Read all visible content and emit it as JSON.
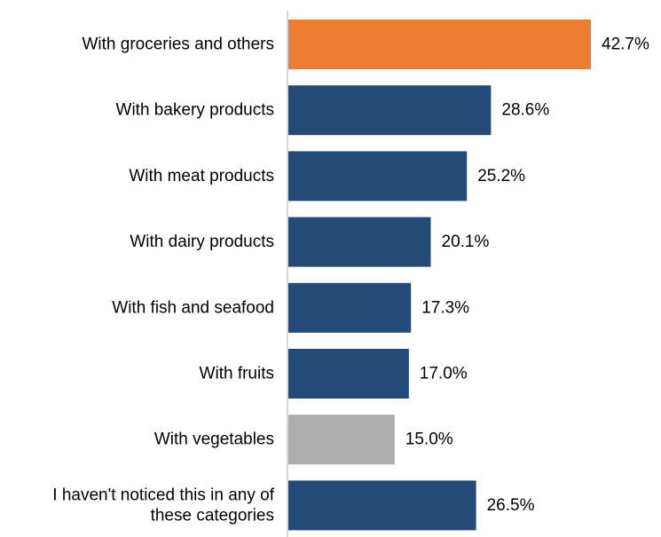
{
  "chart_data": {
    "type": "bar",
    "orientation": "horizontal",
    "title": "",
    "xlabel": "",
    "ylabel": "",
    "value_suffix": "%",
    "xlim": [
      0,
      42.7
    ],
    "grid": false,
    "legend": "none",
    "categories": [
      "With groceries and others",
      "With bakery products",
      "With meat products",
      "With dairy products",
      "With fish and seafood",
      "With fruits",
      "With vegetables",
      "I haven't noticed this in any of these categories"
    ],
    "category_lines": [
      [
        "With groceries and others"
      ],
      [
        "With bakery products"
      ],
      [
        "With meat products"
      ],
      [
        "With dairy products"
      ],
      [
        "With fish and seafood"
      ],
      [
        "With fruits"
      ],
      [
        "With vegetables"
      ],
      [
        "I haven't noticed this in any of",
        "these categories"
      ]
    ],
    "values": [
      42.7,
      28.6,
      25.2,
      20.1,
      17.3,
      17.0,
      15.0,
      26.5
    ],
    "value_labels": [
      "42.7%",
      "28.6%",
      "25.2%",
      "20.1%",
      "17.3%",
      "17.0%",
      "15.0%",
      "26.5%"
    ],
    "colors": [
      "#ed7d31",
      "#244b77",
      "#244b77",
      "#244b77",
      "#244b77",
      "#244b77",
      "#adadad",
      "#244b77"
    ]
  },
  "colors": {
    "highlight": "#ed7d31",
    "default_bar": "#244b77",
    "muted_bar": "#adadad",
    "axis": "#bfbfbf",
    "text": "#000000"
  }
}
